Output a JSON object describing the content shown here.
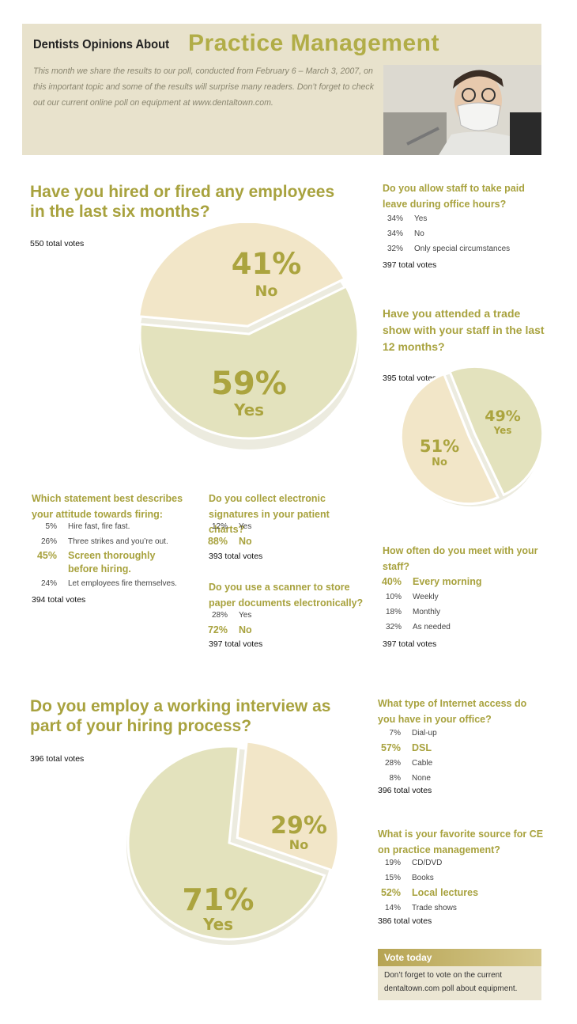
{
  "header": {
    "title_small": "Dentists Opinions About",
    "title_big": "Practice Management",
    "intro": "This month we share the results to our poll, conducted from February 6 – March 3, 2007, on this important topic and some of the results will surprise many readers. Don’t forget to check out our current online poll on equipment at www.dentaltown.com.",
    "photo_icon": "dentist-photo"
  },
  "colors": {
    "accent": "#a8a23e",
    "header_bg": "#e8e2cc",
    "pie_light": "#f2e6c8",
    "pie_dark": "#e3e2bd",
    "vote_box": "#ebe6d3"
  },
  "chart_data": [
    {
      "type": "pie",
      "title": "Have you hired or fired any employees in the last six months?",
      "total": "550 total votes",
      "slices": [
        {
          "label": "No",
          "value": 41,
          "text": "41%"
        },
        {
          "label": "Yes",
          "value": 59,
          "text": "59%"
        }
      ]
    },
    {
      "type": "pie",
      "title": "Have you attended a trade show with your staff in the last 12 months?",
      "total": "395 total votes",
      "slices": [
        {
          "label": "Yes",
          "value": 49,
          "text": "49%"
        },
        {
          "label": "No",
          "value": 51,
          "text": "51%"
        }
      ]
    },
    {
      "type": "pie",
      "title": "Do you employ a working interview as part of your hiring process?",
      "total": "396 total votes",
      "slices": [
        {
          "label": "No",
          "value": 29,
          "text": "29%"
        },
        {
          "label": "Yes",
          "value": 71,
          "text": "71%"
        }
      ]
    }
  ],
  "polls": {
    "paid_leave": {
      "question": "Do you allow staff to take paid leave during office hours?",
      "options": [
        {
          "pct": "34%",
          "label": "Yes"
        },
        {
          "pct": "34%",
          "label": "No"
        },
        {
          "pct": "32%",
          "label": "Only special circumstances"
        }
      ],
      "total": "397 total votes"
    },
    "firing": {
      "question": "Which statement best describes your attitude towards firing:",
      "options": [
        {
          "pct": "5%",
          "label": "Hire fast, fire fast."
        },
        {
          "pct": "26%",
          "label": "Three strikes and you’re out."
        },
        {
          "pct": "45%",
          "label": "Screen thoroughly before hiring."
        },
        {
          "pct": "24%",
          "label": "Let employees fire themselves."
        }
      ],
      "total": "394 total votes"
    },
    "signatures": {
      "question": "Do you collect electronic signatures in your patient charts?",
      "options": [
        {
          "pct": "12%",
          "label": "Yes"
        },
        {
          "pct": "88%",
          "label": "No"
        }
      ],
      "total": "393 total votes"
    },
    "scanner": {
      "question": "Do you use a scanner to store paper documents electronically?",
      "options": [
        {
          "pct": "28%",
          "label": "Yes"
        },
        {
          "pct": "72%",
          "label": "No"
        }
      ],
      "total": "397 total votes"
    },
    "meet_staff": {
      "question": "How often do you meet with your staff?",
      "options": [
        {
          "pct": "40%",
          "label": "Every morning"
        },
        {
          "pct": "10%",
          "label": "Weekly"
        },
        {
          "pct": "18%",
          "label": "Monthly"
        },
        {
          "pct": "32%",
          "label": "As needed"
        }
      ],
      "total": "397 total votes"
    },
    "internet": {
      "question": "What type of Internet access do you have in your office?",
      "options": [
        {
          "pct": "7%",
          "label": "Dial-up"
        },
        {
          "pct": "57%",
          "label": "DSL"
        },
        {
          "pct": "28%",
          "label": "Cable"
        },
        {
          "pct": "8%",
          "label": "None"
        }
      ],
      "total": "396 total votes"
    },
    "ce_source": {
      "question": "What is your favorite source for CE on practice management?",
      "options": [
        {
          "pct": "19%",
          "label": "CD/DVD"
        },
        {
          "pct": "15%",
          "label": "Books"
        },
        {
          "pct": "52%",
          "label": "Local lectures"
        },
        {
          "pct": "14%",
          "label": "Trade shows"
        }
      ],
      "total": "386 total votes"
    }
  },
  "vote_today": {
    "title": "Vote today",
    "text": "Don’t forget to vote on the current dentaltown.com poll about equipment."
  }
}
